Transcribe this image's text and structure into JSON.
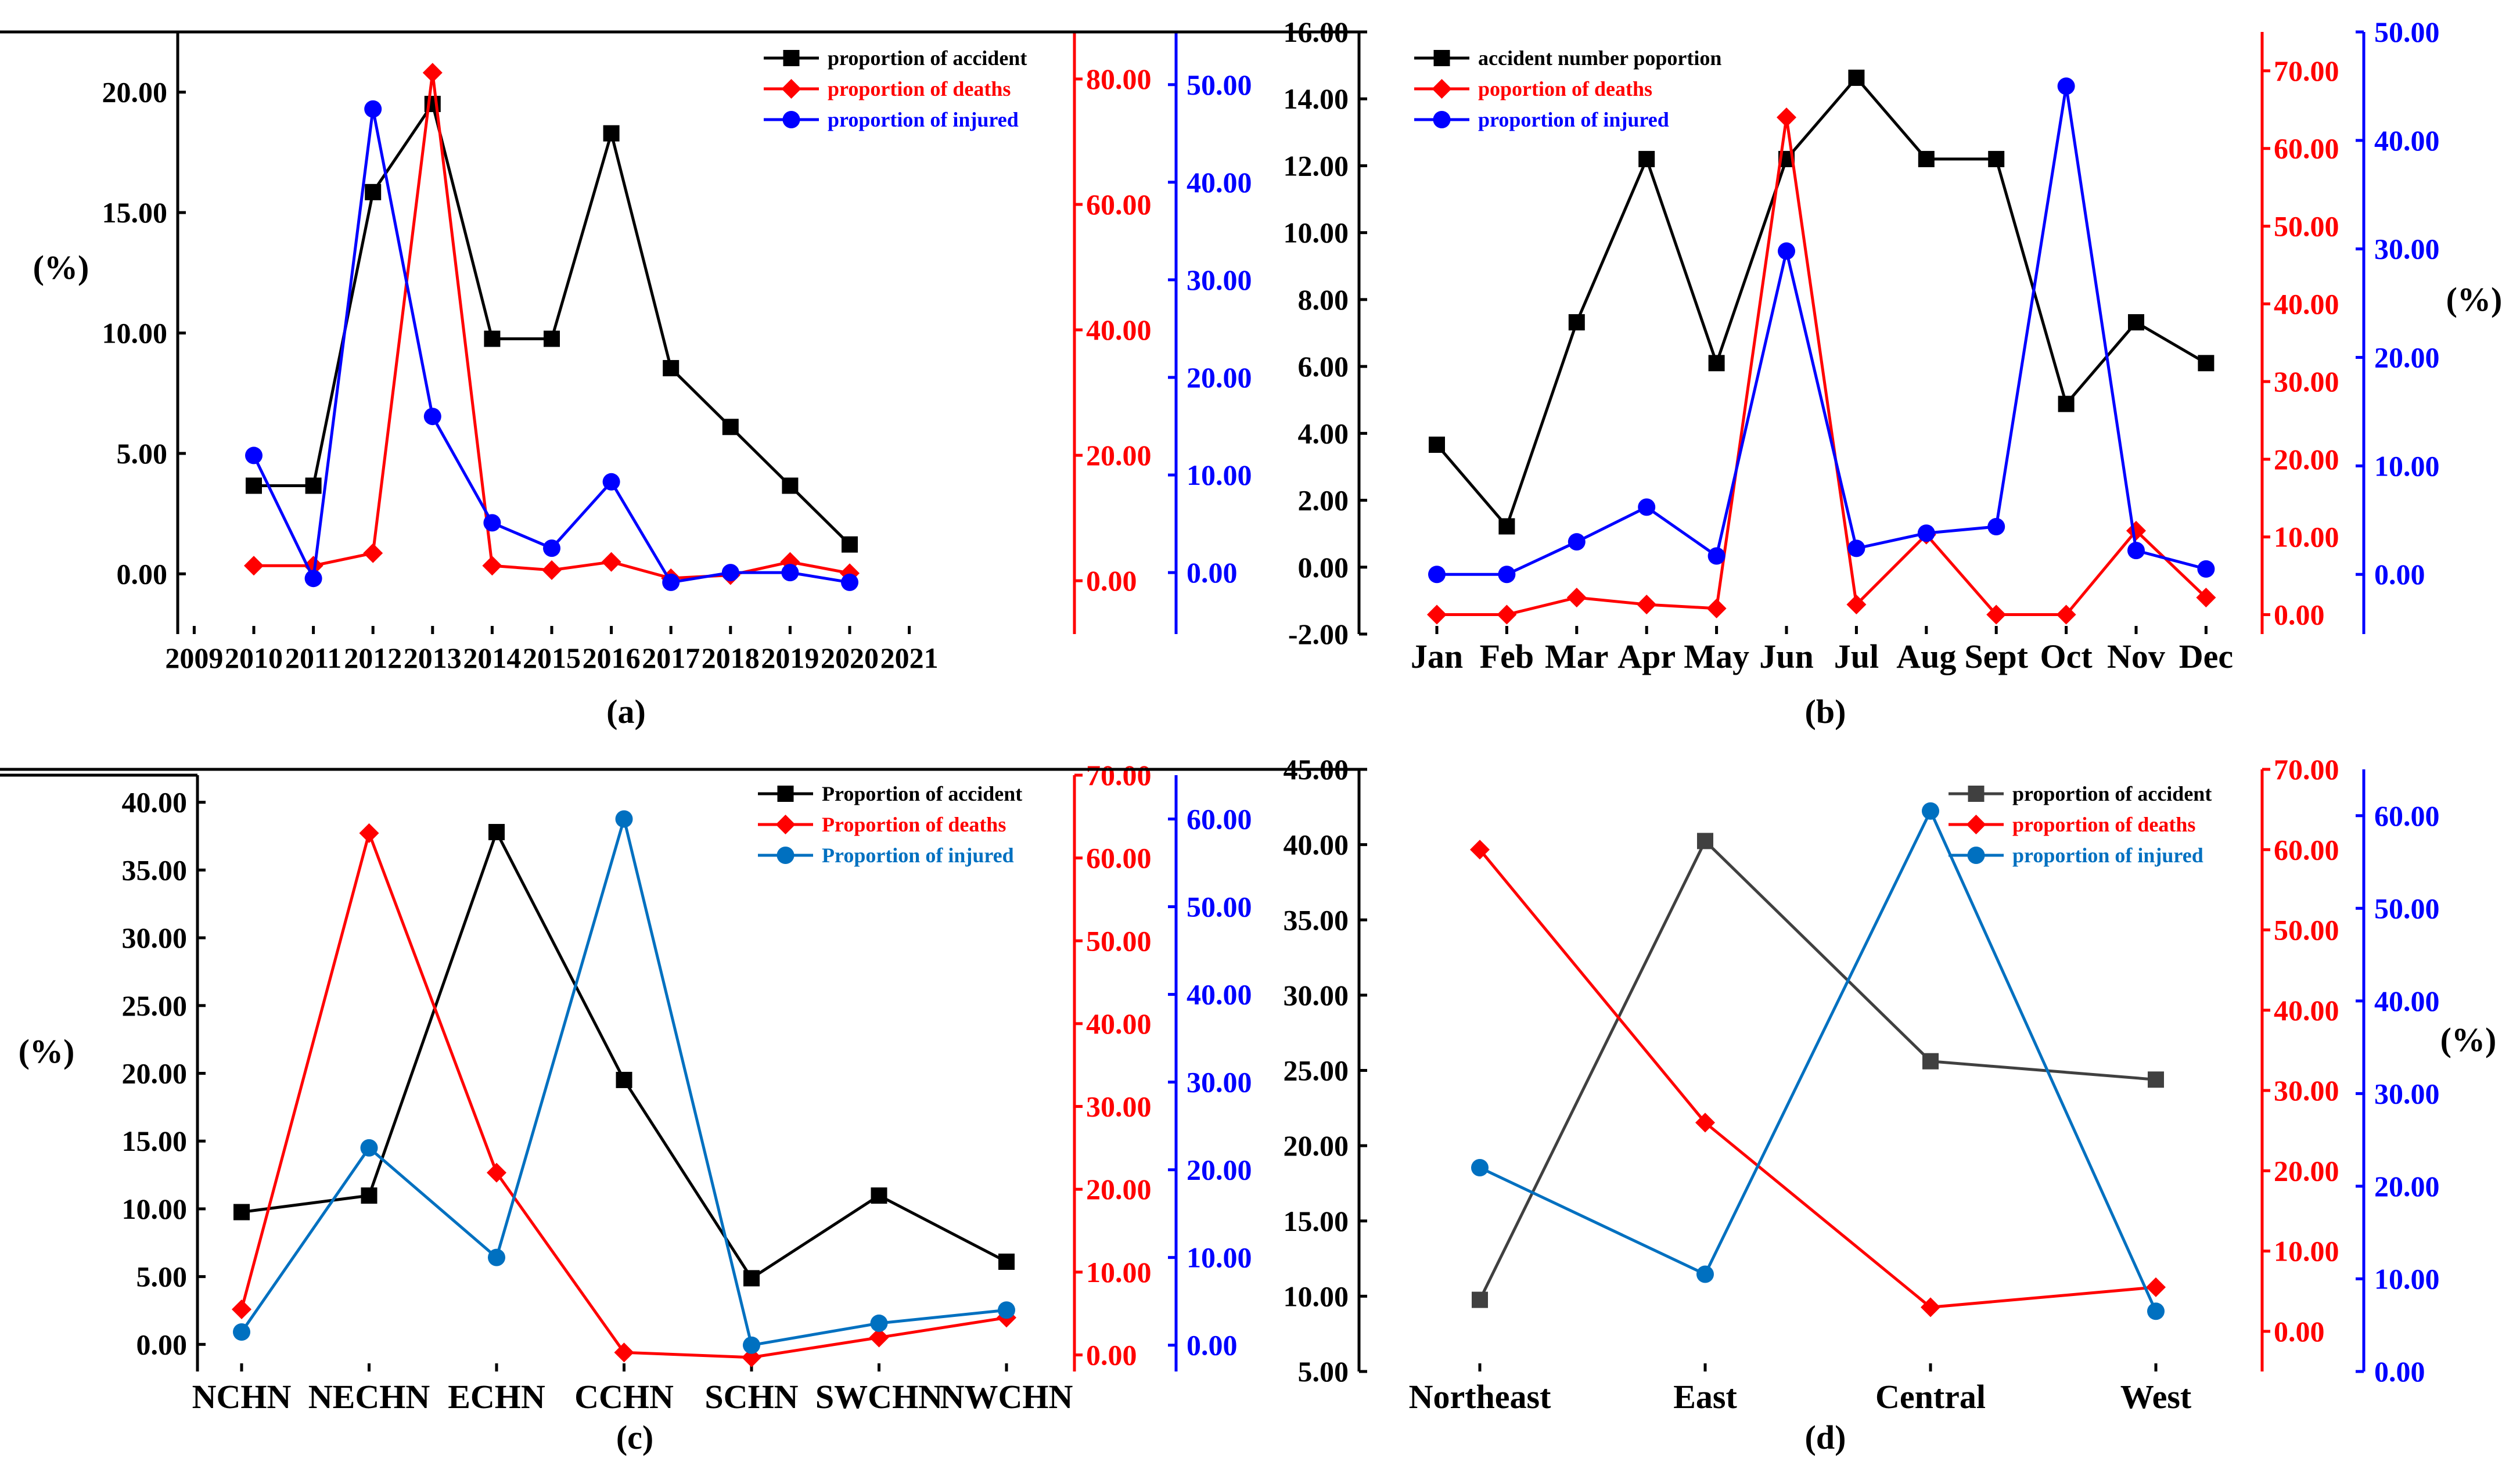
{
  "chart_data": [
    {
      "id": "a",
      "type": "line",
      "caption": "(a)",
      "ylabel": "(%)",
      "x_is_numeric": true,
      "x_ticks": [
        "2009",
        "2010",
        "2011",
        "2012",
        "2013",
        "2014",
        "2015",
        "2016",
        "2017",
        "2018",
        "2019",
        "2020",
        "2021"
      ],
      "categories": [
        "2010",
        "2011",
        "2012",
        "2013",
        "2014",
        "2015",
        "2016",
        "2017",
        "2018",
        "2019",
        "2020"
      ],
      "legend_entries": [
        "proportion of accident",
        "proportion of  deaths",
        "proportion of  injured"
      ],
      "colors": {
        "accident": "#000000",
        "deaths": "#ff0000",
        "injured": "#0000ff"
      },
      "axes": {
        "left": {
          "min": -2.5,
          "max": 22.5,
          "ticks": [
            0,
            5,
            10,
            15,
            20
          ],
          "labels": [
            "0.00",
            "5.00",
            "10.00",
            "15.00",
            "20.00"
          ]
        },
        "mid": {
          "min": -8.5,
          "max": 87.5,
          "ticks": [
            0,
            20,
            40,
            60,
            80
          ],
          "labels": [
            "0.00",
            "20.00",
            "40.00",
            "60.00",
            "80.00"
          ]
        },
        "right": {
          "min": -6.3,
          "max": 55.4,
          "ticks": [
            0,
            10,
            20,
            30,
            40,
            50
          ],
          "labels": [
            "0.00",
            "10.00",
            "20.00",
            "30.00",
            "40.00",
            "50.00"
          ]
        }
      },
      "series": [
        {
          "name": "proportion of accident",
          "axis": "left",
          "color": "#000000",
          "marker": "square",
          "values": [
            3.66,
            3.66,
            15.85,
            19.51,
            9.76,
            9.76,
            18.29,
            8.54,
            6.1,
            3.66,
            1.22
          ]
        },
        {
          "name": "proportion of  deaths",
          "axis": "mid",
          "color": "#ff0000",
          "marker": "diamond",
          "values": [
            2.4,
            2.4,
            4.4,
            81.0,
            2.4,
            1.7,
            3.0,
            0.4,
            0.9,
            3.0,
            1.2
          ]
        },
        {
          "name": "proportion of  injured",
          "axis": "right",
          "color": "#0000ff",
          "marker": "dot",
          "values": [
            12.0,
            -0.6,
            47.5,
            16.0,
            5.1,
            2.5,
            9.3,
            -1.0,
            0.0,
            0.0,
            -1.0
          ]
        }
      ]
    },
    {
      "id": "b",
      "type": "line",
      "caption": "(b)",
      "ylabel": "(%)",
      "categories": [
        "Jan",
        "Feb",
        "Mar",
        "Apr",
        "May",
        "Jun",
        "Jul",
        "Aug",
        "Sept",
        "Oct",
        "Nov",
        "Dec"
      ],
      "legend_entries": [
        "accident number poportion",
        "poportion of deaths",
        "proportion of injured"
      ],
      "colors": {
        "accident": "#000000",
        "deaths": "#ff0000",
        "injured": "#0000ff"
      },
      "axes": {
        "left": {
          "min": -2.0,
          "max": 16.0,
          "ticks": [
            -2,
            0,
            2,
            4,
            6,
            8,
            10,
            12,
            14,
            16
          ],
          "labels": [
            "-2.00",
            "0.00",
            "2.00",
            "4.00",
            "6.00",
            "8.00",
            "10.00",
            "12.00",
            "14.00",
            "16.00"
          ]
        },
        "mid": {
          "min": -2.5,
          "max": 75.0,
          "ticks": [
            0,
            10,
            20,
            30,
            40,
            50,
            60,
            70
          ],
          "labels": [
            "0.00",
            "10.00",
            "20.00",
            "30.00",
            "40.00",
            "50.00",
            "60.00",
            "70.00"
          ]
        },
        "right": {
          "min": -5.5,
          "max": 50.0,
          "ticks": [
            0,
            10,
            20,
            30,
            40,
            50
          ],
          "labels": [
            "0.00",
            "10.00",
            "20.00",
            "30.00",
            "40.00",
            "50.00"
          ]
        }
      },
      "series": [
        {
          "name": "accident number poportion",
          "axis": "left",
          "color": "#000000",
          "marker": "square",
          "values": [
            3.66,
            1.22,
            7.32,
            12.2,
            6.1,
            12.2,
            14.63,
            12.2,
            12.2,
            4.88,
            7.32,
            6.1
          ]
        },
        {
          "name": "poportion of deaths",
          "axis": "mid",
          "color": "#ff0000",
          "marker": "diamond",
          "values": [
            0.0,
            0.0,
            2.2,
            1.3,
            0.8,
            64.0,
            1.3,
            10.3,
            0.0,
            0.0,
            10.8,
            2.2
          ]
        },
        {
          "name": "proportion of injured",
          "axis": "right",
          "color": "#0000ff",
          "marker": "dot",
          "values": [
            0.0,
            0.0,
            3.0,
            6.2,
            1.7,
            29.8,
            2.4,
            3.8,
            4.4,
            45.0,
            2.2,
            0.5
          ]
        }
      ]
    },
    {
      "id": "c",
      "type": "line",
      "caption": "(c)",
      "ylabel": "(%)",
      "categories": [
        "NCHN",
        "NECHN",
        "ECHN",
        "CCHN",
        "SCHN",
        "SWCHN",
        "NWCHN"
      ],
      "legend_entries": [
        "Proportion of accident",
        "Proportion of deaths",
        "Proportion of injured"
      ],
      "colors": {
        "accident": "#000000",
        "deaths": "#ff0000",
        "injured": "#0070c0"
      },
      "axes": {
        "left": {
          "min": -2.0,
          "max": 42.0,
          "ticks": [
            0,
            5,
            10,
            15,
            20,
            25,
            30,
            35,
            40
          ],
          "labels": [
            "0.00",
            "5.00",
            "10.00",
            "15.00",
            "20.00",
            "25.00",
            "30.00",
            "35.00",
            "40.00"
          ]
        },
        "mid": {
          "min": -2.0,
          "max": 70.0,
          "ticks": [
            0,
            10,
            20,
            30,
            40,
            50,
            60,
            70
          ],
          "labels": [
            "0.00",
            "10.00",
            "20.00",
            "30.00",
            "40.00",
            "50.00",
            "60.00",
            "70.00"
          ]
        },
        "right": {
          "min": -3.0,
          "max": 65.0,
          "ticks": [
            0,
            10,
            20,
            30,
            40,
            50,
            60
          ],
          "labels": [
            "0.00",
            "10.00",
            "20.00",
            "30.00",
            "40.00",
            "50.00",
            "60.00"
          ]
        }
      },
      "series": [
        {
          "name": "Proportion of accident",
          "axis": "left",
          "color": "#000000",
          "marker": "square",
          "values": [
            9.76,
            10.98,
            37.8,
            19.51,
            4.88,
            10.98,
            6.1
          ]
        },
        {
          "name": "Proportion of deaths",
          "axis": "mid",
          "color": "#ff0000",
          "marker": "diamond",
          "values": [
            5.5,
            63.0,
            22.0,
            0.3,
            -0.3,
            2.1,
            4.5
          ]
        },
        {
          "name": "Proportion of injured",
          "axis": "right",
          "color": "#0070c0",
          "marker": "dot",
          "values": [
            1.5,
            22.5,
            10.0,
            60.0,
            0.0,
            2.5,
            4.0
          ]
        }
      ]
    },
    {
      "id": "d",
      "type": "line",
      "caption": "(d)",
      "ylabel": "(%)",
      "categories": [
        "Northeast",
        "East",
        "Central",
        "West"
      ],
      "legend_entries": [
        "proportion of accident",
        "proportion of deaths",
        "proportion of injured"
      ],
      "colors": {
        "accident": "#404040",
        "deaths": "#ff0000",
        "injured": "#0070c0"
      },
      "axes": {
        "left": {
          "min": 5.0,
          "max": 45.0,
          "ticks": [
            5,
            10,
            15,
            20,
            25,
            30,
            35,
            40,
            45
          ],
          "labels": [
            "5.00",
            "10.00",
            "15.00",
            "20.00",
            "25.00",
            "30.00",
            "35.00",
            "40.00",
            "45.00"
          ]
        },
        "mid": {
          "min": -5.0,
          "max": 70.0,
          "ticks": [
            0,
            10,
            20,
            30,
            40,
            50,
            60,
            70
          ],
          "labels": [
            "0.00",
            "10.00",
            "20.00",
            "30.00",
            "40.00",
            "50.00",
            "60.00",
            "70.00"
          ]
        },
        "right": {
          "min": 0.0,
          "max": 65.0,
          "ticks": [
            0,
            10,
            20,
            30,
            40,
            50,
            60
          ],
          "labels": [
            "0.00",
            "10.00",
            "20.00",
            "30.00",
            "40.00",
            "50.00",
            "60.00"
          ]
        }
      },
      "series": [
        {
          "name": "proportion of accident",
          "axis": "left",
          "color": "#404040",
          "marker": "square",
          "values": [
            9.76,
            40.24,
            25.61,
            24.39
          ]
        },
        {
          "name": "proportion of deaths",
          "axis": "mid",
          "color": "#ff0000",
          "marker": "diamond",
          "values": [
            60.0,
            26.0,
            3.0,
            5.5
          ]
        },
        {
          "name": "proportion of injured",
          "axis": "right",
          "color": "#0070c0",
          "marker": "dot",
          "values": [
            22.0,
            10.5,
            60.5,
            6.5
          ]
        }
      ]
    }
  ]
}
